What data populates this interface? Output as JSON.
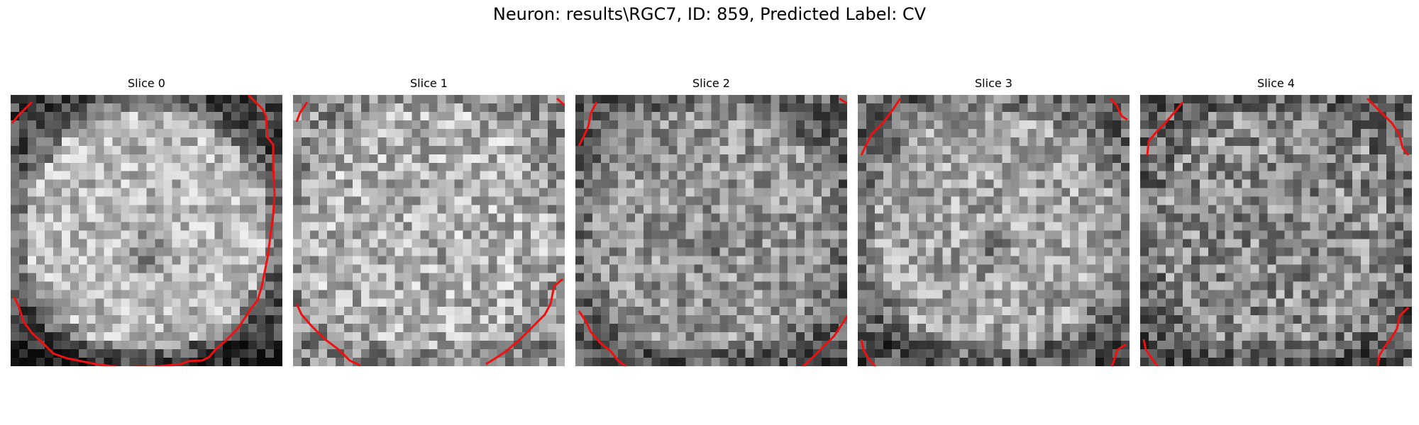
{
  "figure": {
    "title": "Neuron: results\\RGC7, ID: 859, Predicted Label: CV"
  },
  "panels": [
    {
      "title": "Slice 0"
    },
    {
      "title": "Slice 1"
    },
    {
      "title": "Slice 2"
    },
    {
      "title": "Slice 3"
    },
    {
      "title": "Slice 4"
    }
  ],
  "colors": {
    "contour": "#ee1111",
    "background": "#ffffff"
  }
}
